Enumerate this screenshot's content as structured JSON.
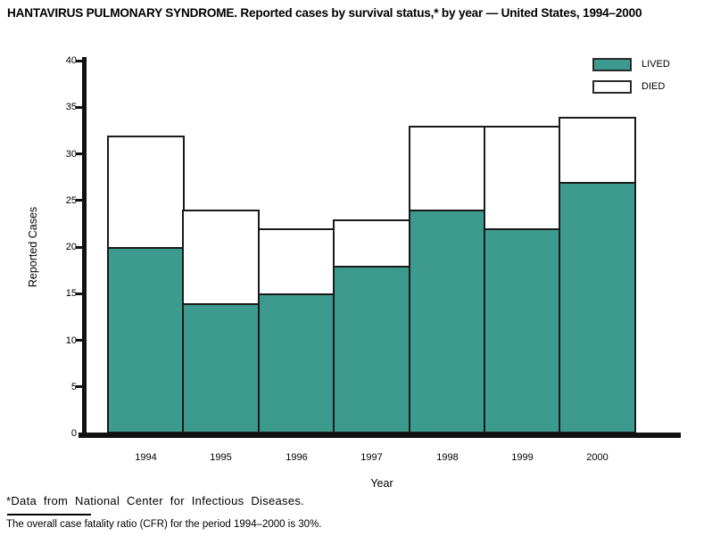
{
  "title": "HANTAVIRUS PULMONARY SYNDROME. Reported cases by survival status,* by year — United States, 1994–2000",
  "chart_data": {
    "type": "bar",
    "stacked": true,
    "title": "HANTAVIRUS PULMONARY SYNDROME. Reported cases by survival status,* by year — United States, 1994–2000",
    "categories": [
      "1994",
      "1995",
      "1996",
      "1997",
      "1998",
      "1999",
      "2000"
    ],
    "series": [
      {
        "name": "LIVED",
        "values": [
          20,
          14,
          15,
          18,
          24,
          22,
          27
        ],
        "color": "#3d9a8e"
      },
      {
        "name": "DIED",
        "values": [
          12,
          10,
          7,
          5,
          9,
          11,
          7
        ],
        "color": "#ffffff"
      }
    ],
    "totals": [
      32,
      24,
      22,
      23,
      33,
      33,
      34
    ],
    "xlabel": "Year",
    "ylabel": "Reported Cases",
    "ylim": [
      0,
      40
    ],
    "yticks": [
      0,
      5,
      10,
      15,
      20,
      25,
      30,
      35,
      40
    ],
    "grid": false,
    "legend_position": "top-right"
  },
  "footnotes": {
    "source": "*Data from National Center for Infectious Diseases.",
    "cfr": "The overall case fatality ratio (CFR) for the period 1994–2000 is 30%."
  },
  "colors": {
    "lived": "#3d9a8e",
    "died": "#ffffff",
    "axis": "#111111",
    "bar_border": "#1a1a1a",
    "text": "#000000"
  }
}
